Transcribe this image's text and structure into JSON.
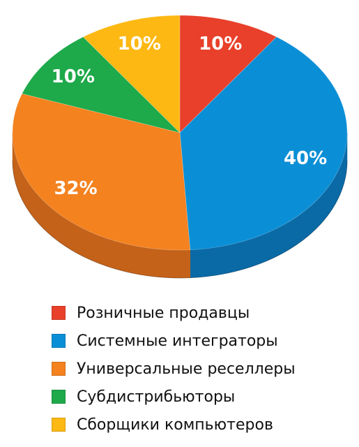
{
  "chart_data": {
    "type": "pie",
    "style": "3d",
    "title": "",
    "slices": [
      {
        "label": "Розничные продавцы",
        "value": 10,
        "value_label": "10%",
        "color": "#e8402a",
        "side_color": "#b8301c"
      },
      {
        "label": "Системные интеграторы",
        "value": 40,
        "value_label": "40%",
        "color": "#0a8fd6",
        "side_color": "#0a6aa6"
      },
      {
        "label": "Универсальные реселлеры",
        "value": 32,
        "value_label": "32%",
        "color": "#f4821f",
        "side_color": "#c4621a"
      },
      {
        "label": "Субдистрибьюторы",
        "value": 10,
        "value_label": "10%",
        "color": "#1ea94a",
        "side_color": "#138235"
      },
      {
        "label": "Сборщики компьютеров",
        "value": 10,
        "value_label": "10%",
        "color": "#fdb813",
        "side_color": "#c98f0a"
      }
    ],
    "start_angle_deg": -90,
    "direction": "clockwise",
    "legend": "bottom"
  }
}
